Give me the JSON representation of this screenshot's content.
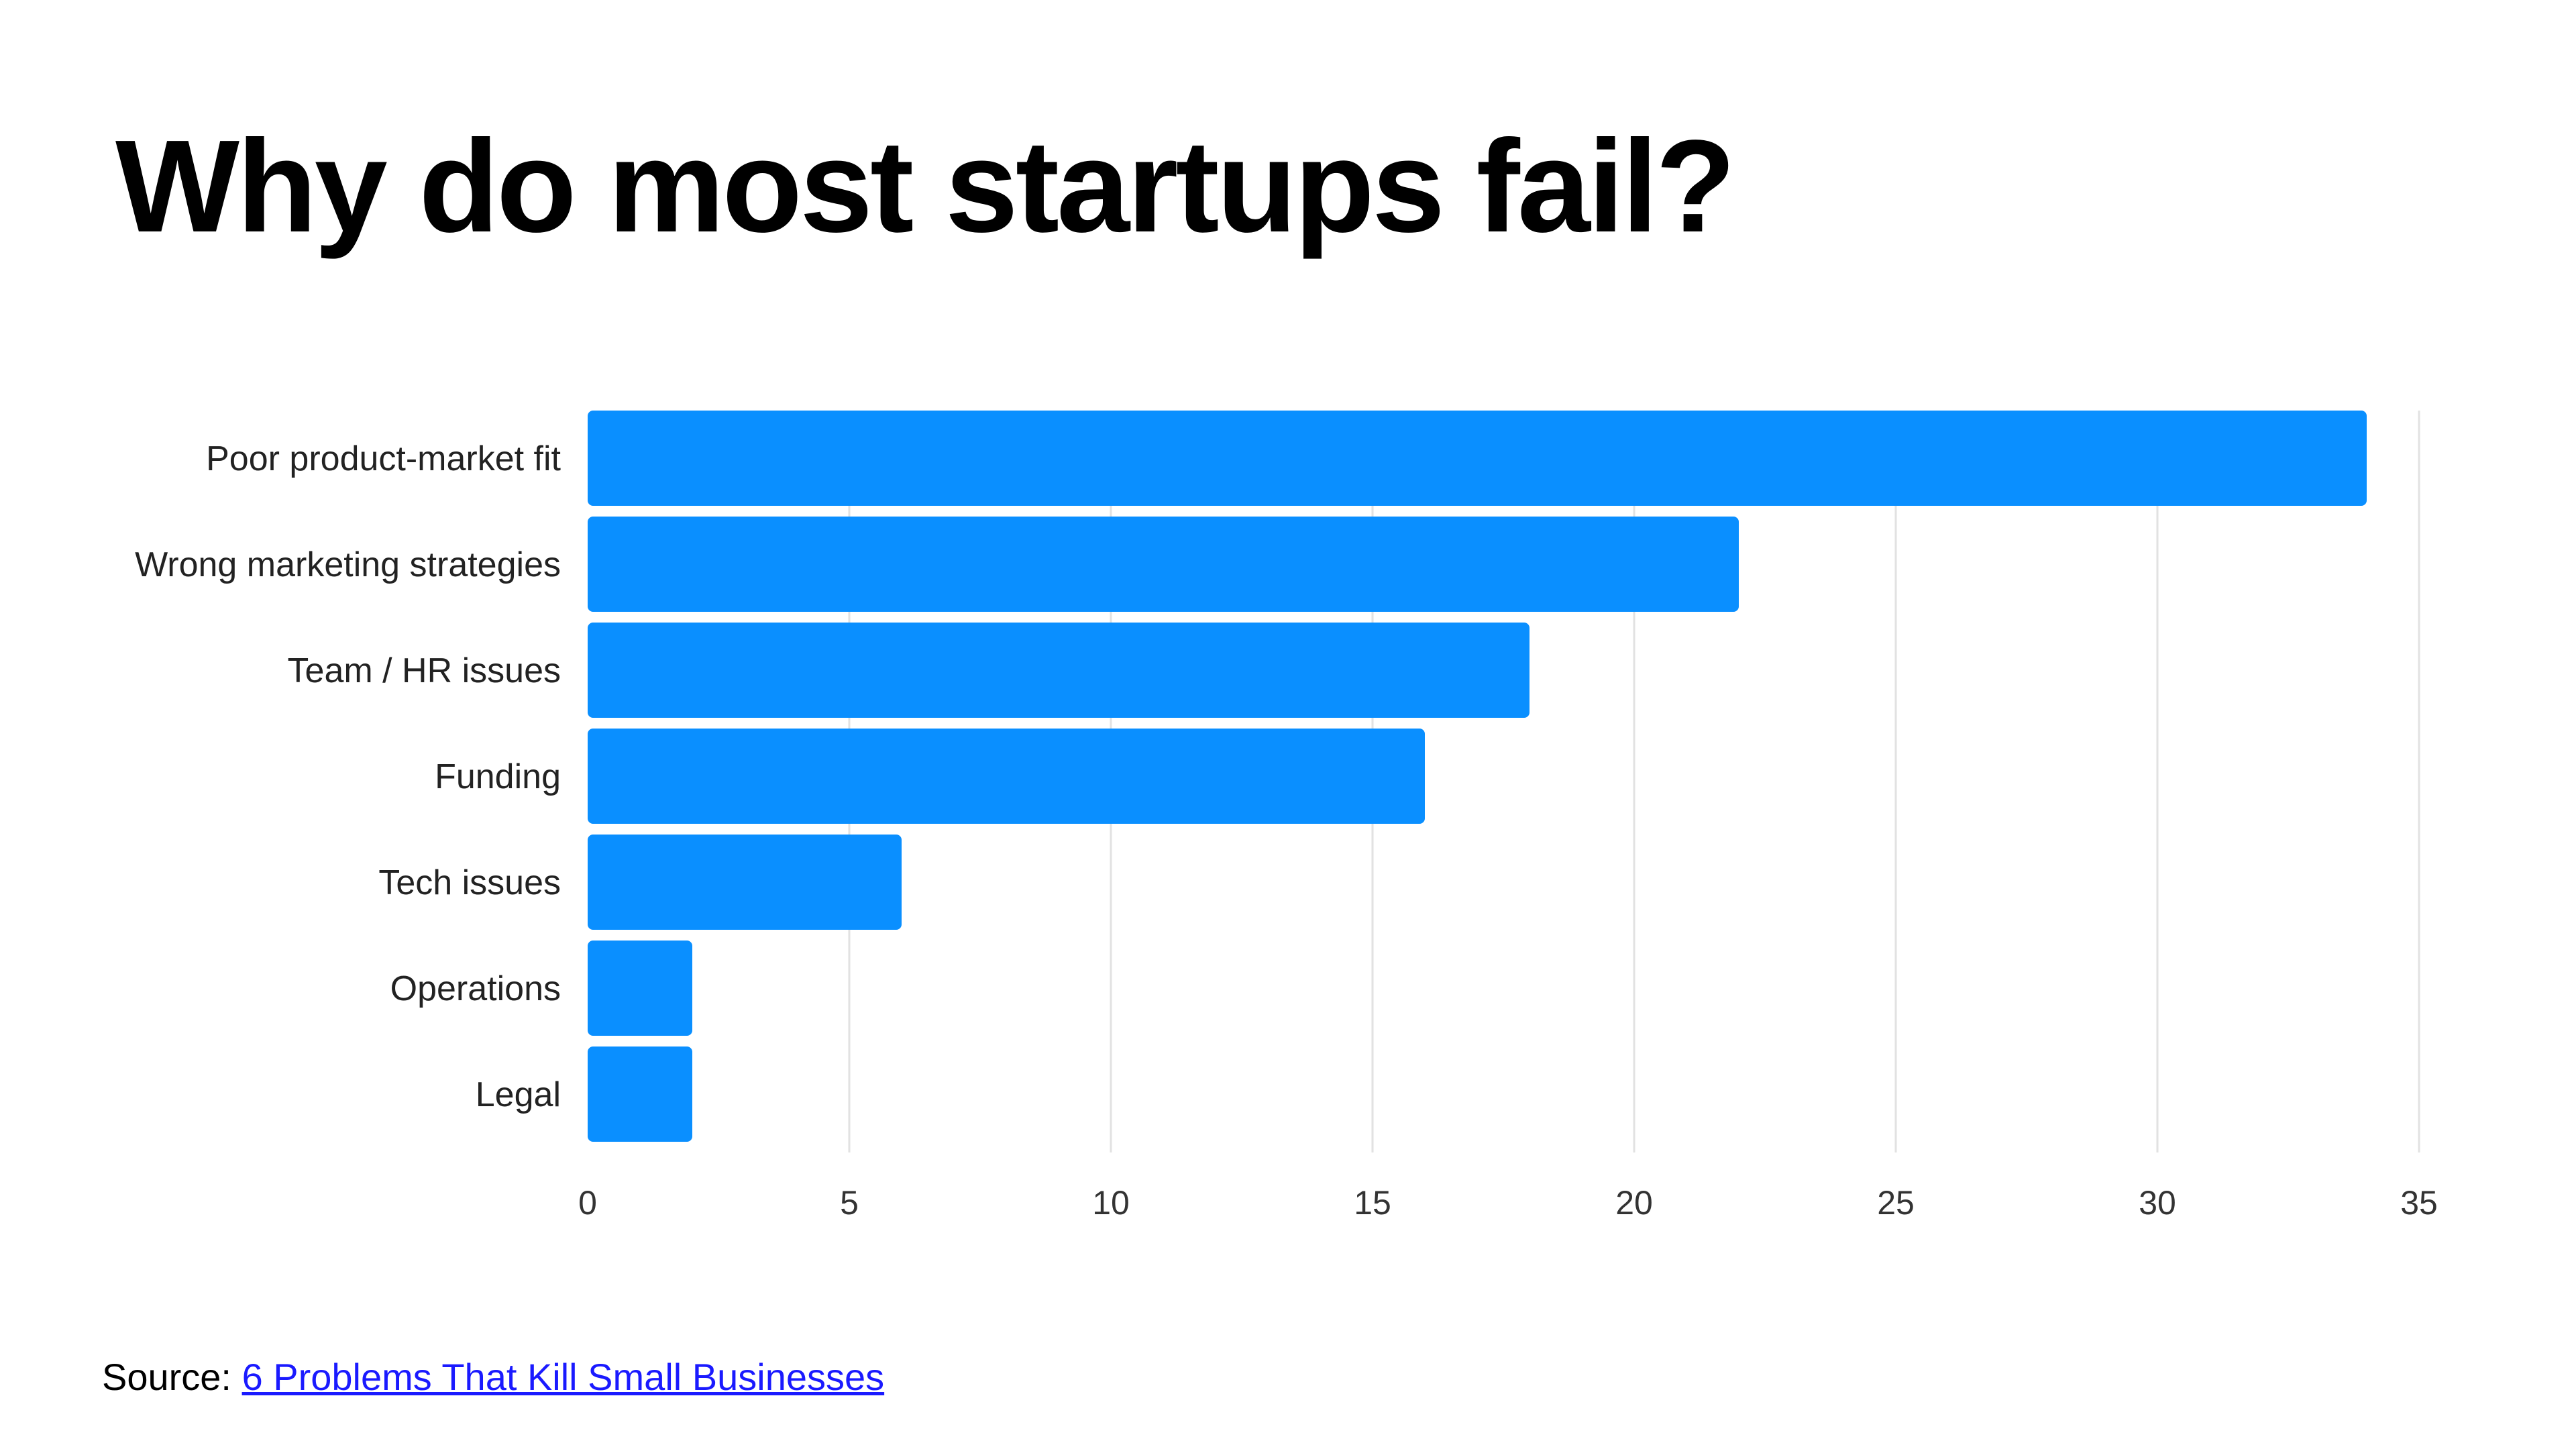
{
  "title": "Why do most startups fail?",
  "source": {
    "prefix": "Source:",
    "link_text": "6 Problems That Kill Small Businesses"
  },
  "colors": {
    "bar": "#0A8FFF",
    "grid": "#e2e2e2",
    "link": "#1a1aff"
  },
  "chart_data": {
    "type": "bar",
    "orientation": "horizontal",
    "title": "Why do most startups fail?",
    "xlabel": "",
    "ylabel": "",
    "categories": [
      "Poor product-market fit",
      "Wrong marketing strategies",
      "Team / HR issues",
      "Funding",
      "Tech issues",
      "Operations",
      "Legal"
    ],
    "values": [
      34,
      22,
      18,
      16,
      6,
      2,
      2
    ],
    "xlim": [
      0,
      35
    ],
    "xticks": [
      0,
      5,
      10,
      15,
      20,
      25,
      30,
      35
    ],
    "xtick_labels": [
      "0",
      "5",
      "10",
      "15",
      "20",
      "25",
      "30",
      "35"
    ],
    "grid": true,
    "legend": "none"
  }
}
